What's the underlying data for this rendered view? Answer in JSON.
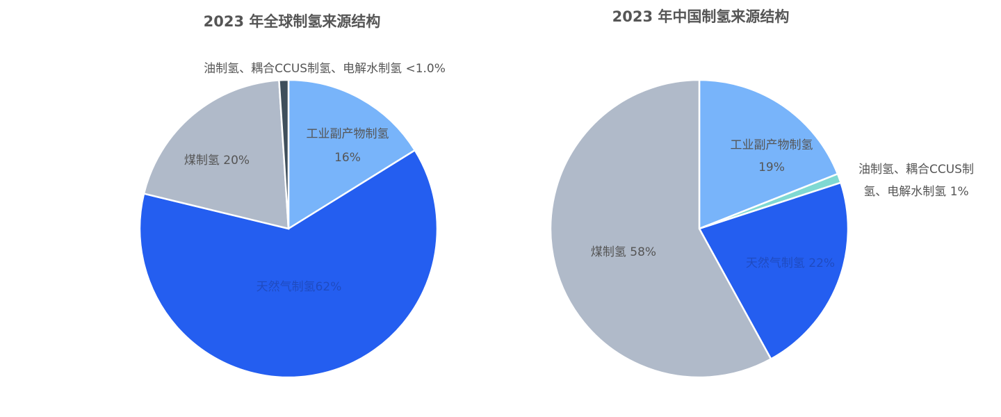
{
  "chart_data": [
    {
      "type": "pie",
      "title": "2023 年全球制氢来源结构",
      "start_angle_deg": 0,
      "colors": {
        "工业副产物制氢": "#78b4fa",
        "天然气制氢": "#245ef0",
        "煤制氢": "#b0bac9",
        "油制氢、耦合CCUS制氢、电解水制氢": "#3f4f5c"
      },
      "slices": [
        {
          "name": "工业副产物制氢",
          "value": 16,
          "label_lines": [
            "工业副产物制氢",
            "16%"
          ]
        },
        {
          "name": "天然气制氢",
          "value": 62,
          "label_lines": [
            "天然气制氢62%"
          ]
        },
        {
          "name": "煤制氢",
          "value": 20,
          "label_lines": [
            "煤制氢 20%"
          ]
        },
        {
          "name": "油制氢、耦合CCUS制氢、电解水制氢",
          "value": 1,
          "label_lines": [
            "油制氢、耦合CCUS制氢、电解水制氢 <1.0%"
          ]
        }
      ]
    },
    {
      "type": "pie",
      "title": "2023 年中国制氢来源结构",
      "start_angle_deg": 0,
      "colors": {
        "工业副产物制氢": "#78b4fa",
        "油制氢、耦合CCUS制氢、电解水制氢": "#7fd9d2",
        "天然气制氢": "#245ef0",
        "煤制氢": "#b0bac9"
      },
      "slices": [
        {
          "name": "工业副产物制氢",
          "value": 19,
          "label_lines": [
            "工业副产物制氢",
            "19%"
          ]
        },
        {
          "name": "油制氢、耦合CCUS制氢、电解水制氢",
          "value": 1,
          "label_lines": [
            "油制氢、耦合CCUS制",
            "氢、电解水制氢 1%"
          ]
        },
        {
          "name": "天然气制氢",
          "value": 22,
          "label_lines": [
            "天然气制氢 22%"
          ]
        },
        {
          "name": "煤制氢",
          "value": 58,
          "label_lines": [
            "煤制氢 58%"
          ]
        }
      ]
    }
  ]
}
